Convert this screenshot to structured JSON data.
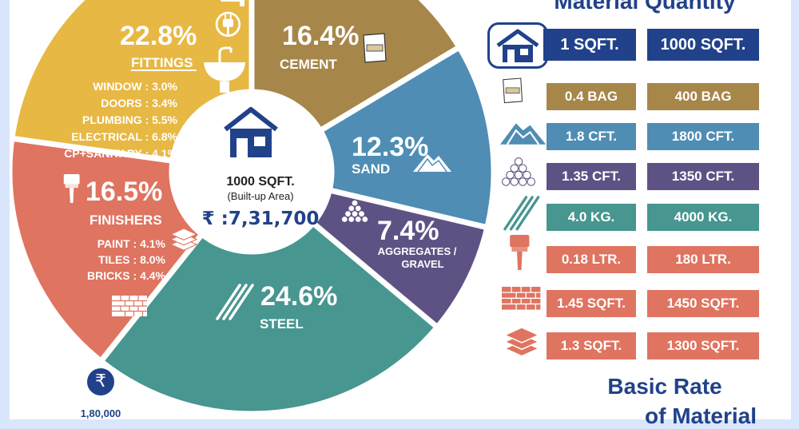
{
  "chart_data": {
    "type": "pie",
    "center": {
      "area": "1000 SQFT.",
      "area_note": "(Built-up Area)",
      "cost": "₹ :7,31,700"
    },
    "slices": [
      {
        "key": "cement",
        "label": "CEMENT",
        "percent_label": "16.4%",
        "value": 16.4,
        "color": "#a7864a"
      },
      {
        "key": "sand",
        "label": "SAND",
        "percent_label": "12.3%",
        "value": 12.3,
        "color": "#4f8db4"
      },
      {
        "key": "aggregates",
        "label": "AGGREGATES /\nGRAVEL",
        "percent_label": "7.4%",
        "value": 7.4,
        "color": "#5e5285"
      },
      {
        "key": "steel",
        "label": "STEEL",
        "percent_label": "24.6%",
        "value": 24.6,
        "color": "#479690"
      },
      {
        "key": "finishers",
        "label": "FINISHERS",
        "percent_label": "16.5%",
        "value": 16.5,
        "color": "#df7460",
        "breakdown": [
          {
            "label": "PAINT : 4.1%",
            "value": 4.1
          },
          {
            "label": "TILES : 8.0%",
            "value": 8.0
          },
          {
            "label": "BRICKS : 4.4%",
            "value": 4.4
          }
        ]
      },
      {
        "key": "fittings",
        "label": "FITTINGS",
        "percent_label": "22.8%",
        "value": 22.8,
        "color": "#e7b843",
        "breakdown": [
          {
            "label": "WINDOW : 3.0%",
            "value": 3.0
          },
          {
            "label": "DOORS : 3.4%",
            "value": 3.4
          },
          {
            "label": "PLUMBING : 5.5%",
            "value": 5.5
          },
          {
            "label": "ELECTRICAL : 6.8%",
            "value": 6.8
          },
          {
            "label": "CP+SANITARY : 4.1%",
            "value": 4.1
          }
        ]
      }
    ]
  },
  "quantity_table": {
    "title": "Material Quantity",
    "header": {
      "col1": "1 SQFT.",
      "col2": "1000 SQFT.",
      "color": "#21428a"
    },
    "rows": [
      {
        "material": "cement",
        "per_sqft": "0.4 BAG",
        "per_1000": "400 BAG",
        "color": "#a7864a"
      },
      {
        "material": "sand",
        "per_sqft": "1.8 CFT.",
        "per_1000": "1800 CFT.",
        "color": "#4f8db4"
      },
      {
        "material": "aggregates",
        "per_sqft": "1.35 CFT.",
        "per_1000": "1350 CFT.",
        "color": "#5e5285"
      },
      {
        "material": "steel",
        "per_sqft": "4.0 KG.",
        "per_1000": "4000 KG.",
        "color": "#479690"
      },
      {
        "material": "paint",
        "per_sqft": "0.18 LTR.",
        "per_1000": "180 LTR.",
        "color": "#df7460"
      },
      {
        "material": "bricks",
        "per_sqft": "1.45 SQFT.",
        "per_1000": "1450 SQFT.",
        "color": "#df7460"
      },
      {
        "material": "tiles",
        "per_sqft": "1.3 SQFT.",
        "per_1000": "1300 SQFT.",
        "color": "#df7460"
      }
    ]
  },
  "basic_rate": {
    "title_line1": "Basic Rate",
    "title_line2": "of Material",
    "currency_symbol": "₹",
    "value": "1,80,000"
  },
  "icons": {
    "cement": "cement-bag-icon",
    "sand": "sand-pile-icon",
    "aggregates": "aggregate-stones-icon",
    "steel": "steel-rods-icon",
    "paint": "paint-brush-icon",
    "bricks": "brick-wall-icon",
    "tiles": "tile-stack-icon",
    "house": "house-icon",
    "plug": "electric-plug-icon",
    "basin": "wash-basin-icon",
    "tap": "water-tap-icon"
  }
}
